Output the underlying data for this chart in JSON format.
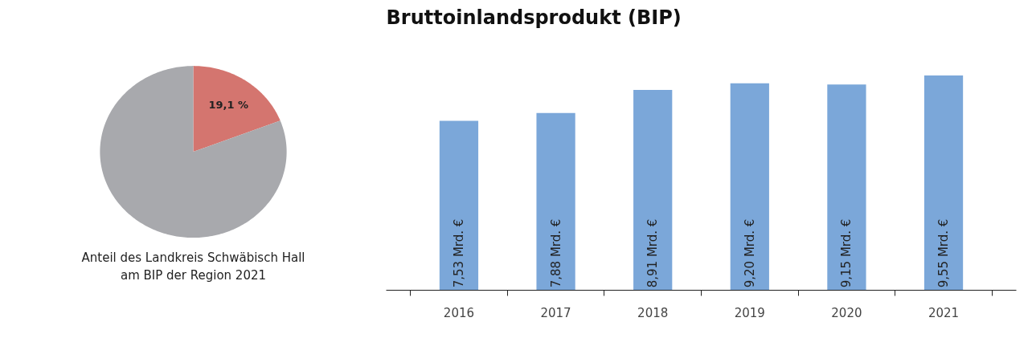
{
  "chart_data": [
    {
      "type": "pie",
      "categories": [
        null,
        null
      ],
      "values": [
        19.1,
        80.9
      ],
      "colors": [
        "#d4756f",
        "#a8a9ad"
      ],
      "value_labels": [
        "19,1 %",
        null
      ],
      "annotations": [
        "Anteil des Landkreis Schwäbisch Hall\nam BIP der Region 2021"
      ]
    },
    {
      "type": "bar",
      "title": "Bruttoinlandsprodukt (BIP)",
      "categories": [
        "2016",
        "2017",
        "2018",
        "2019",
        "2020",
        "2021"
      ],
      "values": [
        7.53,
        7.88,
        8.91,
        9.2,
        9.15,
        9.55
      ],
      "color": "#7ba7d9",
      "value_labels": [
        "7,53 Mrd. €",
        "7,88 Mrd. €",
        "8,91 Mrd. €",
        "9,20 Mrd. €",
        "9,15 Mrd. €",
        "9,55 Mrd. €"
      ]
    }
  ]
}
